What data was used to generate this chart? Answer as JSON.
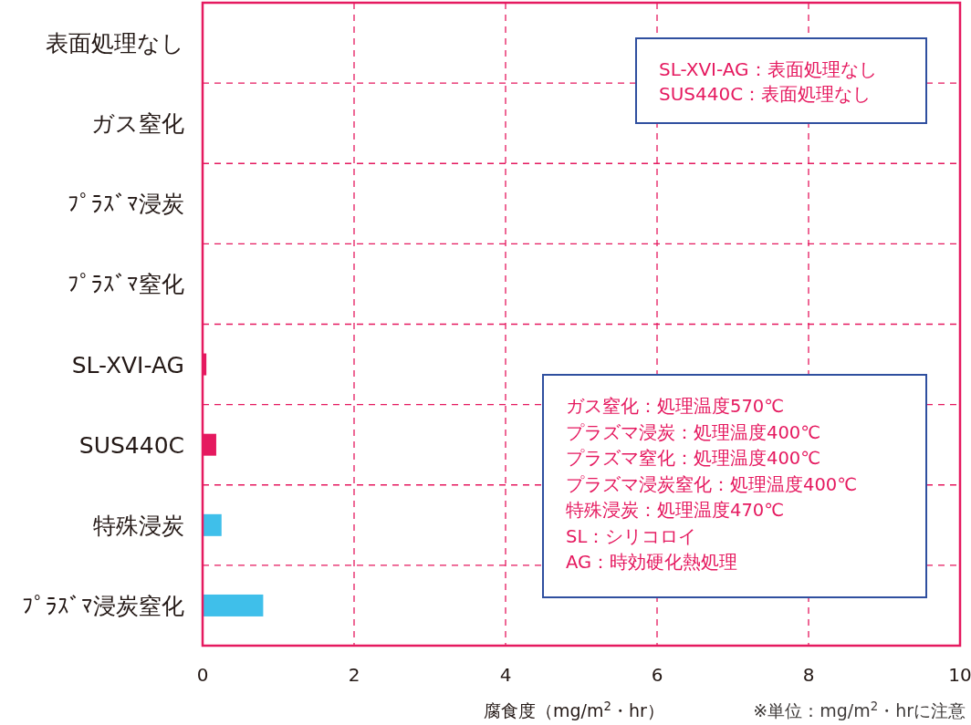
{
  "chart_data": {
    "type": "bar",
    "orientation": "horizontal",
    "categories": [
      "表面処理なし",
      "ガス窒化",
      "ﾌﾟﾗｽﾞﾏ浸炭",
      "ﾌﾟﾗｽﾞﾏ窒化",
      "SL-XVI-AG",
      "SUS440C",
      "特殊浸炭",
      "ﾌﾟﾗｽﾞﾏ浸炭窒化"
    ],
    "values": [
      0,
      0,
      0,
      0,
      0.05,
      0.18,
      0.25,
      0.8
    ],
    "colors": [
      "#e5195f",
      "#e5195f",
      "#e5195f",
      "#e5195f",
      "#e5195f",
      "#e5195f",
      "#3fbfea",
      "#3fbfea"
    ],
    "xlim": [
      0,
      10
    ],
    "xticks": [
      0,
      2,
      4,
      6,
      8,
      10
    ],
    "grid": true,
    "xlabel": "腐食度（mg/m$^{2}$・hr）",
    "annotations": [
      "SL-XVI-AG：表面処理なし\nSUS440C：表面処理なし",
      "ガス窒化：処理温度570℃\nプラズマ浸炭：処理温度400℃\nプラズマ窒化：処理温度400℃\nプラズマ浸炭窒化：処理温度400℃\n特殊浸炭：処理温度470℃\nSL：シリコロイ\nAG：時効硬化熱処理",
      "※単位：mg/m$^{2}$・hrに注意"
    ]
  }
}
